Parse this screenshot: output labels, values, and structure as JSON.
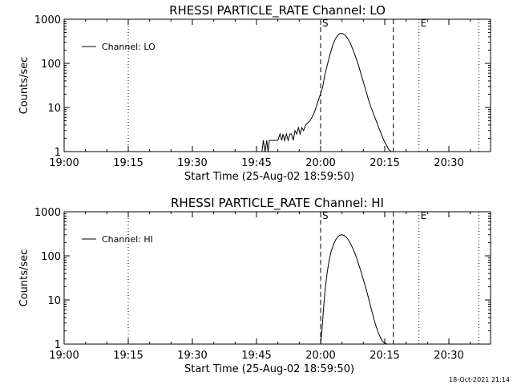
{
  "chart_data": [
    {
      "type": "line",
      "title": "RHESSI PARTICLE_RATE Channel: LO",
      "xlabel": "Start Time (25-Aug-02 18:59:50)",
      "ylabel": "Counts/sec",
      "yscale": "log",
      "ylim": [
        1,
        1000
      ],
      "xlim": [
        "19:00",
        "20:39"
      ],
      "xtick_labels": [
        "19:00",
        "19:15",
        "19:30",
        "19:45",
        "20:00",
        "20:15",
        "20:30"
      ],
      "ytick_labels": [
        "1",
        "10",
        "100",
        "1000"
      ],
      "legend": {
        "label": "Channel: LO",
        "placement": "top-left"
      },
      "vlines": [
        {
          "x": "19:15",
          "style": "dotted",
          "label": ""
        },
        {
          "x": "20:00",
          "style": "dashed",
          "label": "S"
        },
        {
          "x": "20:17",
          "style": "dashed",
          "label": ""
        },
        {
          "x": "20:23",
          "style": "dotted",
          "label": "E"
        },
        {
          "x": "20:37",
          "style": "dotted",
          "label": ""
        }
      ],
      "series": [
        {
          "name": "Channel: LO",
          "x": [
            "19:46.3",
            "19:46.6",
            "19:47.0",
            "19:47.4",
            "19:47.7",
            "19:48.0",
            "19:48.4",
            "19:48.8",
            "19:49.2",
            "19:49.6",
            "19:50.0",
            "19:50.5",
            "19:50.9",
            "19:51.2",
            "19:51.6",
            "19:52.0",
            "19:52.4",
            "19:52.8",
            "19:53.2",
            "19:53.6",
            "19:54.0",
            "19:54.4",
            "19:54.8",
            "19:55.2",
            "19:55.6",
            "19:56.0",
            "19:56.5",
            "19:57.0",
            "19:57.5",
            "19:58.0",
            "19:58.6",
            "19:59.2",
            "19:59.8",
            "20:00.5",
            "20:01.0",
            "20:01.6",
            "20:02.2",
            "20:02.8",
            "20:03.4",
            "20:04.0",
            "20:04.6",
            "20:05.2",
            "20:05.8",
            "20:06.4",
            "20:07.0",
            "20:07.6",
            "20:08.2",
            "20:08.8",
            "20:09.4",
            "20:10.0",
            "20:10.6",
            "20:11.2",
            "20:11.8",
            "20:12.4",
            "20:13.0",
            "20:13.6",
            "20:14.2",
            "20:14.8",
            "20:15.4",
            "20:16.0",
            "20:16.5"
          ],
          "y": [
            1,
            1.8,
            1,
            1.8,
            1,
            1.8,
            1.8,
            1.8,
            1.8,
            1.8,
            1.8,
            2.5,
            1.8,
            2.5,
            1.8,
            2.5,
            1.8,
            2.5,
            2.5,
            1.8,
            3,
            2.5,
            3.5,
            2.5,
            3.5,
            3,
            4,
            4.5,
            5,
            6,
            8,
            12,
            18,
            30,
            55,
            95,
            160,
            250,
            350,
            430,
            480,
            470,
            430,
            360,
            280,
            200,
            140,
            95,
            60,
            38,
            24,
            15,
            10,
            7,
            5,
            3.5,
            2.5,
            1.8,
            1.4,
            1.1,
            1
          ]
        }
      ]
    },
    {
      "type": "line",
      "title": "RHESSI PARTICLE_RATE Channel: HI",
      "xlabel": "Start Time (25-Aug-02 18:59:50)",
      "ylabel": "Counts/sec",
      "yscale": "log",
      "ylim": [
        1,
        1000
      ],
      "xlim": [
        "19:00",
        "20:39"
      ],
      "xtick_labels": [
        "19:00",
        "19:15",
        "19:30",
        "19:45",
        "20:00",
        "20:15",
        "20:30"
      ],
      "ytick_labels": [
        "1",
        "10",
        "100",
        "1000"
      ],
      "legend": {
        "label": "Channel: HI",
        "placement": "top-left"
      },
      "vlines": [
        {
          "x": "19:15",
          "style": "dotted",
          "label": ""
        },
        {
          "x": "20:00",
          "style": "dashed",
          "label": "S"
        },
        {
          "x": "20:17",
          "style": "dashed",
          "label": ""
        },
        {
          "x": "20:23",
          "style": "dotted",
          "label": "E"
        },
        {
          "x": "20:37",
          "style": "dotted",
          "label": ""
        }
      ],
      "series": [
        {
          "name": "Channel: HI",
          "x": [
            "20:00.0",
            "20:00.3",
            "20:00.6",
            "20:01.0",
            "20:01.5",
            "20:02.0",
            "20:02.5",
            "20:03.0",
            "20:03.5",
            "20:04.0",
            "20:04.5",
            "20:05.0",
            "20:05.5",
            "20:06.0",
            "20:06.5",
            "20:07.0",
            "20:07.5",
            "20:08.0",
            "20:08.5",
            "20:09.0",
            "20:09.5",
            "20:10.0",
            "20:10.5",
            "20:11.0",
            "20:11.5",
            "20:12.0",
            "20:12.5",
            "20:13.0",
            "20:13.5",
            "20:14.0",
            "20:14.5",
            "20:15.0",
            "20:15.5"
          ],
          "y": [
            1,
            2,
            5,
            15,
            40,
            80,
            130,
            180,
            230,
            270,
            295,
            300,
            290,
            265,
            230,
            190,
            150,
            115,
            85,
            60,
            42,
            29,
            20,
            13,
            8.5,
            5.5,
            3.6,
            2.5,
            1.8,
            1.4,
            1.15,
            1.05,
            1
          ]
        }
      ]
    }
  ],
  "timestamp": "18-Oct-2021 21:14"
}
